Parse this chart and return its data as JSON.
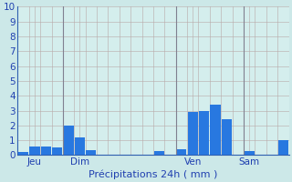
{
  "title": "",
  "xlabel": "Précipitations 24h ( mm )",
  "bg_color": "#cce8e8",
  "plot_bg_color": "#d4eeed",
  "bar_color_dark": "#1040b0",
  "bar_color_light": "#2878e0",
  "grid_color": "#b8a8a8",
  "vline_color": "#808090",
  "axis_line_color": "#3060b0",
  "text_color": "#2040b0",
  "ylim": [
    0,
    10
  ],
  "yticks": [
    0,
    1,
    2,
    3,
    4,
    5,
    6,
    7,
    8,
    9,
    10
  ],
  "values": [
    0.2,
    0.6,
    0.6,
    0.5,
    2.0,
    1.2,
    0.35,
    0.0,
    0.0,
    0.0,
    0.0,
    0.0,
    0.3,
    0.0,
    0.4,
    2.9,
    3.0,
    3.4,
    2.4,
    0.0,
    0.3,
    0.0,
    0.0,
    1.0
  ],
  "n_bars": 24,
  "xtick_positions": [
    1,
    5,
    15,
    20
  ],
  "xtick_labels": [
    "Jeu",
    "Dim",
    "Ven",
    "Sam"
  ],
  "vline_positions": [
    3.5,
    13.5,
    19.5
  ],
  "xgrid_positions": [
    0,
    1,
    2,
    3,
    4,
    5,
    6,
    7,
    8,
    9,
    10,
    11,
    12,
    13,
    14,
    15,
    16,
    17,
    18,
    19,
    20,
    21,
    22,
    23
  ],
  "figsize": [
    3.2,
    2.0
  ],
  "dpi": 100
}
